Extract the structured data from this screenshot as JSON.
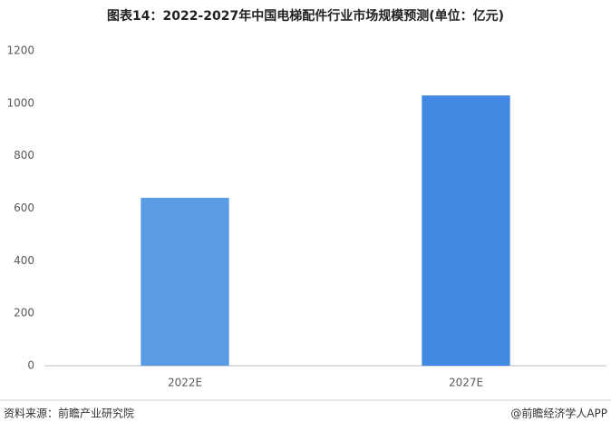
{
  "chart_data": {
    "type": "bar",
    "title": "图表14：2022-2027年中国电梯配件行业市场规模预测(单位：亿元)",
    "categories": [
      "2022E",
      "2027E"
    ],
    "values": [
      640,
      1030
    ],
    "colors": [
      "#5b9be6",
      "#4189e3"
    ],
    "ylim": [
      0,
      1200
    ],
    "yticks": [
      0,
      200,
      400,
      600,
      800,
      1000,
      1200
    ],
    "grid": false,
    "source": "资料来源：前瞻产业研究院",
    "credit": "@前瞻经济学人APP"
  }
}
